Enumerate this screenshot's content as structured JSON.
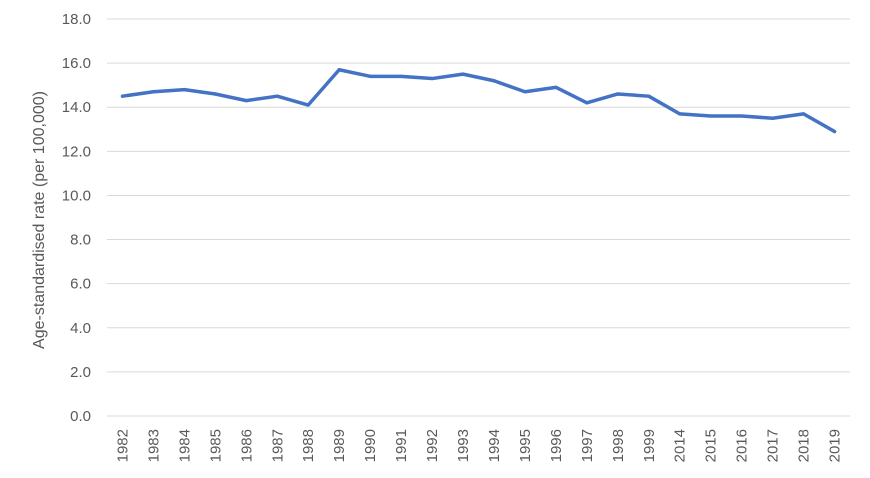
{
  "chart_data": {
    "type": "line",
    "title": "",
    "xlabel": "",
    "ylabel": "Age-standardised rate (per 100,000)",
    "ylim": [
      0,
      18
    ],
    "yticks": [
      "0.0",
      "2.0",
      "4.0",
      "6.0",
      "8.0",
      "10.0",
      "12.0",
      "14.0",
      "16.0",
      "18.0"
    ],
    "grid": true,
    "legend": "none",
    "categories": [
      "1982",
      "1983",
      "1984",
      "1985",
      "1986",
      "1987",
      "1988",
      "1989",
      "1990",
      "1991",
      "1992",
      "1993",
      "1994",
      "1995",
      "1996",
      "1997",
      "1998",
      "1999",
      "2014",
      "2015",
      "2016",
      "2017",
      "2018",
      "2019"
    ],
    "series": [
      {
        "color": "#4472c4",
        "values": [
          14.5,
          14.7,
          14.8,
          14.6,
          14.3,
          14.5,
          14.1,
          15.7,
          15.4,
          15.4,
          15.3,
          15.5,
          15.2,
          14.7,
          14.9,
          14.2,
          14.6,
          14.5,
          13.7,
          13.6,
          13.6,
          13.5,
          13.7,
          12.9
        ]
      }
    ]
  }
}
